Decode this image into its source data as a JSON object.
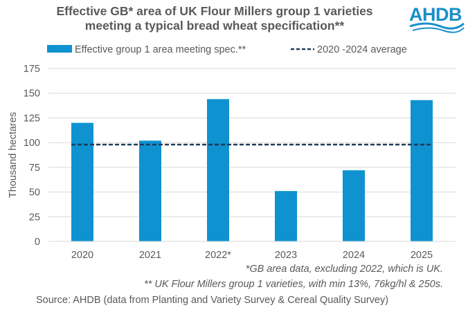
{
  "chart_data": {
    "type": "bar",
    "title_line1": "Effective GB* area of UK Flour Millers group 1 varieties",
    "title_line2": "meeting a typical bread wheat specification**",
    "categories": [
      "2020",
      "2021",
      "2022*",
      "2023",
      "2024",
      "2025"
    ],
    "series": [
      {
        "name": "Effective group 1 area meeting spec.**",
        "values": [
          120,
          102,
          144,
          51,
          72,
          143
        ],
        "color": "#0f92d0"
      }
    ],
    "average": {
      "name": "2020 -2024 average",
      "value": 98,
      "color": "#1f3a5a"
    },
    "ylabel": "Thousand hectares",
    "xlabel": "",
    "ylim": [
      0,
      175
    ],
    "yticks": [
      0,
      25,
      50,
      75,
      100,
      125,
      150,
      175
    ],
    "grid": true,
    "legend": "top"
  },
  "logo": {
    "text": "AHDB"
  },
  "notes": {
    "note1": "*GB area data, excluding 2022, which is UK.",
    "note2": "** UK Flour Millers group 1 varieties, with min 13%, 76kg/hl & 250s."
  },
  "source": "Source: AHDB (data from Planting and Variety Survey & Cereal Quality Survey)"
}
